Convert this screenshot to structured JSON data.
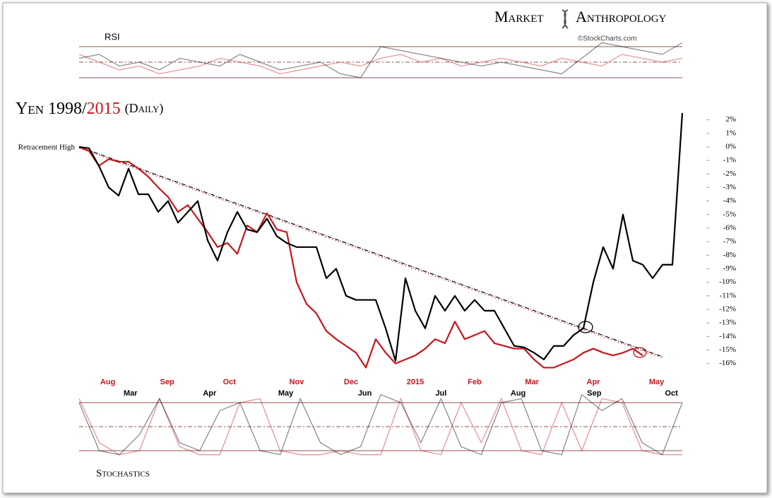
{
  "chart_data": {
    "type": "line",
    "title_parts": [
      "Yen 1998/",
      "2015",
      "(Daily)"
    ],
    "brand": [
      "Market",
      "Anthropology"
    ],
    "source": "©StockCharts.com",
    "annotation": "Retracement High",
    "rsi_label": "RSI",
    "stoch_label": "Stochastics",
    "xlim": [
      0,
      61
    ],
    "ylim": [
      -16.8,
      2.5
    ],
    "yticks": [
      {
        "value": 2,
        "label": "2%"
      },
      {
        "value": 1,
        "label": "1%"
      },
      {
        "value": 0,
        "label": "0%"
      },
      {
        "value": -1,
        "label": "-1%"
      },
      {
        "value": -2,
        "label": "-2%"
      },
      {
        "value": -3,
        "label": "-3%"
      },
      {
        "value": -4,
        "label": "-4%"
      },
      {
        "value": -5,
        "label": "-5%"
      },
      {
        "value": -6,
        "label": "-6%"
      },
      {
        "value": -7,
        "label": "-7%"
      },
      {
        "value": -8,
        "label": "-8%"
      },
      {
        "value": -9,
        "label": "-9%"
      },
      {
        "value": -10,
        "label": "-10%"
      },
      {
        "value": -11,
        "label": "-11%"
      },
      {
        "value": -12,
        "label": "-12%"
      },
      {
        "value": -13,
        "label": "-13%"
      },
      {
        "value": -14,
        "label": "-14%"
      },
      {
        "value": -15,
        "label": "-15%"
      },
      {
        "value": -16,
        "label": "-16%"
      }
    ],
    "trendline": {
      "x": [
        0,
        59
      ],
      "values": [
        0,
        -15.5
      ]
    },
    "series": [
      {
        "name": "1998",
        "color": "#000000",
        "values": [
          0,
          -0.1,
          -1.4,
          -3.0,
          -3.6,
          -1.6,
          -3.5,
          -3.5,
          -4.8,
          -4.0,
          -5.6,
          -4.8,
          -4.0,
          -6.9,
          -8.4,
          -6.3,
          -4.8,
          -6.1,
          -6.3,
          -5.3,
          -6.6,
          -7.1,
          -7.4,
          -7.4,
          -7.4,
          -9.7,
          -9.0,
          -11.0,
          -11.3,
          -11.3,
          -11.3,
          -13.4,
          -15.8,
          -9.7,
          -12.1,
          -13.4,
          -11.0,
          -12.1,
          -11.0,
          -12.1,
          -11.3,
          -12.1,
          -12.1,
          -13.4,
          -14.7,
          -14.8,
          -15.2,
          -15.7,
          -14.7,
          -14.7,
          -13.9,
          -13.4,
          -10.0,
          -7.4,
          -9.0,
          -5.0,
          -8.4,
          -8.7,
          -9.7,
          -8.7,
          -8.7,
          2.5
        ],
        "month_labels": [
          {
            "value": 5.2,
            "label": "Mar"
          },
          {
            "value": 13.2,
            "label": "Apr"
          },
          {
            "value": 20.9,
            "label": "May"
          },
          {
            "value": 28.9,
            "label": "Jun"
          },
          {
            "value": 36.6,
            "label": "Jul"
          },
          {
            "value": 44.4,
            "label": "Aug"
          },
          {
            "value": 52.1,
            "label": "Sep"
          },
          {
            "value": 59.9,
            "label": "Oct"
          }
        ],
        "rsi": [
          55,
          60,
          45,
          50,
          40,
          55,
          50,
          45,
          60,
          50,
          40,
          45,
          50,
          35,
          30,
          70,
          65,
          60,
          55,
          50,
          45,
          50,
          45,
          40,
          35,
          55,
          75,
          70,
          65,
          60,
          75
        ],
        "stoch": [
          80,
          20,
          15,
          40,
          85,
          30,
          20,
          70,
          80,
          20,
          15,
          85,
          30,
          15,
          25,
          90,
          80,
          30,
          85,
          25,
          15,
          80,
          85,
          20,
          15,
          90,
          70,
          85,
          30,
          15,
          80
        ]
      },
      {
        "name": "2015",
        "color": "#c8161d",
        "values": [
          0,
          -0.3,
          -1.4,
          -0.9,
          -1.1,
          -1.1,
          -1.6,
          -2.2,
          -3.0,
          -3.7,
          -4.8,
          -4.3,
          -5.3,
          -6.3,
          -7.4,
          -7.1,
          -7.9,
          -5.8,
          -6.3,
          -4.9,
          -6.1,
          -6.3,
          -10.0,
          -11.6,
          -12.3,
          -13.6,
          -14.2,
          -14.7,
          -15.2,
          -16.3,
          -14.2,
          -15.2,
          -16.0,
          -15.7,
          -15.4,
          -14.9,
          -14.2,
          -14.5,
          -12.9,
          -14.2,
          -13.9,
          -13.6,
          -14.5,
          -14.7,
          -14.9,
          -14.9,
          -15.7,
          -16.3,
          -16.3,
          -16.0,
          -15.7,
          -15.2,
          -14.9,
          -15.2,
          -15.4,
          -15.2,
          -14.9,
          -15.4,
          null,
          null,
          null,
          null
        ],
        "month_labels": [
          {
            "value": 2.9,
            "label": "Aug"
          },
          {
            "value": 8.9,
            "label": "Sep"
          },
          {
            "value": 15.2,
            "label": "Oct"
          },
          {
            "value": 22,
            "label": "Nov"
          },
          {
            "value": 27.5,
            "label": "Dec"
          },
          {
            "value": 34,
            "label": "2015"
          },
          {
            "value": 40,
            "label": "Feb"
          },
          {
            "value": 45.8,
            "label": "Mar"
          },
          {
            "value": 52,
            "label": "Apr"
          },
          {
            "value": 58.4,
            "label": "May"
          }
        ],
        "rsi": [
          60,
          50,
          40,
          45,
          35,
          40,
          45,
          55,
          50,
          45,
          35,
          40,
          45,
          50,
          45,
          55,
          60,
          50,
          55,
          45,
          50,
          55,
          50,
          45,
          55,
          50,
          45,
          60,
          55,
          50,
          55
        ],
        "stoch": [
          85,
          30,
          15,
          20,
          85,
          25,
          15,
          15,
          80,
          85,
          20,
          15,
          15,
          20,
          15,
          15,
          85,
          20,
          15,
          80,
          30,
          85,
          20,
          15,
          80,
          20,
          85,
          80,
          20,
          15,
          15
        ]
      }
    ],
    "sub_xlim": [
      0,
      30
    ],
    "rsi_ylim": [
      30,
      70
    ],
    "rsi_levels": [
      70,
      50,
      30
    ],
    "stoch_ylim": [
      20,
      80
    ],
    "stoch_levels": [
      80,
      50,
      20
    ]
  }
}
